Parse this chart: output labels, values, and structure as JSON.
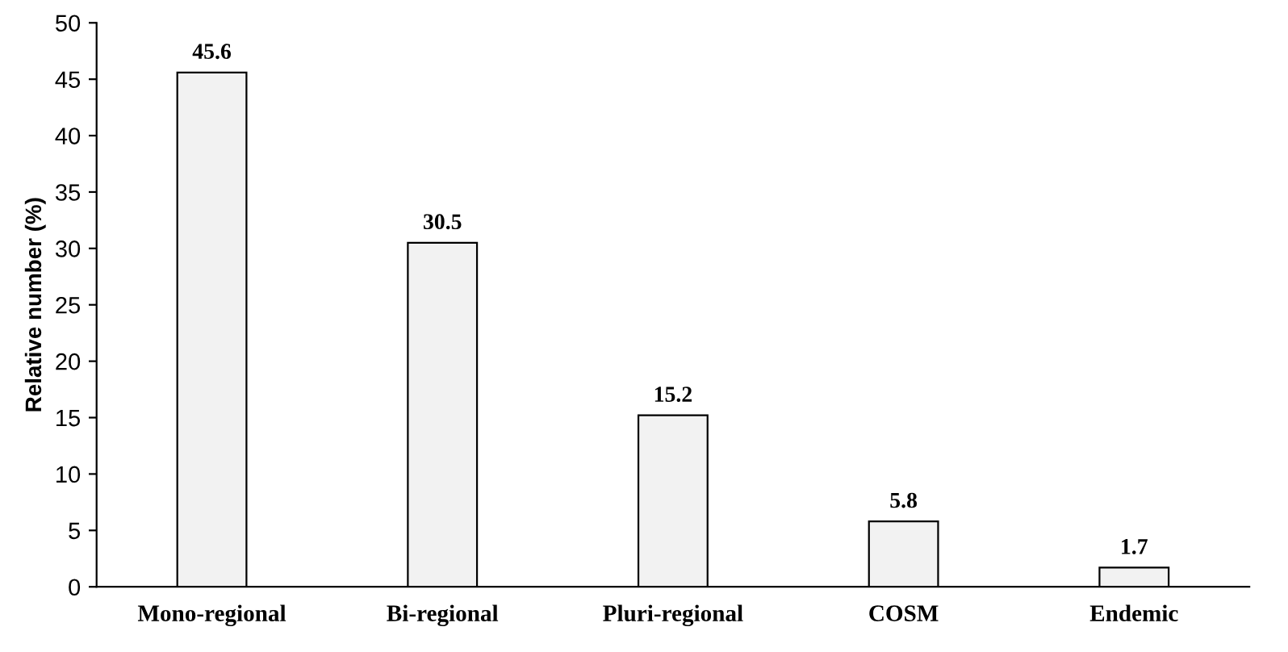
{
  "chart_data": {
    "type": "bar",
    "ylabel": "Relative number (%)",
    "categories": [
      "Mono-regional",
      "Bi-regional",
      "Pluri-regional",
      "COSM",
      "Endemic"
    ],
    "values": [
      45.6,
      30.5,
      15.2,
      5.8,
      1.7
    ],
    "color": "#f2f2f2",
    "ylim": [
      0,
      50
    ],
    "yticks": [
      0,
      5,
      10,
      15,
      20,
      25,
      30,
      35,
      40,
      45,
      50
    ],
    "data_labels": true,
    "grid": false
  }
}
